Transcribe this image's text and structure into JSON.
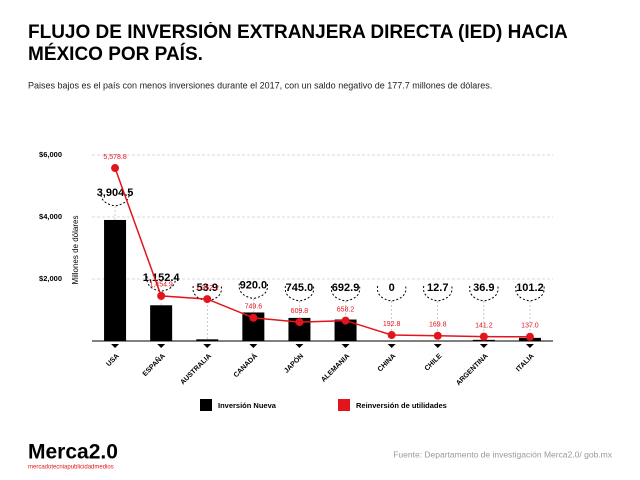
{
  "chart_data": {
    "type": "bar_line",
    "title": "FLUJO DE INVERSIÓN EXTRANJERA DIRECTA (IED) HACIA MÉXICO POR PAÍS.",
    "subtitle": "Paises bajos es el país con menos inversiones durante el 2017, con un saldo negativo de 177.7 millones de dólares.",
    "y_label": "Millones de dólares",
    "categories": [
      "USA",
      "ESPAÑA",
      "AUSTRALIA",
      "CANADÁ",
      "JAPÓN",
      "ALEMANIA",
      "CHINA",
      "CHILE",
      "ARGENTINA",
      "ITALIA"
    ],
    "series": [
      {
        "name": "Inversión Nueva",
        "color": "#000000",
        "kind": "bar",
        "values": [
          3904.5,
          1152.4,
          53.9,
          920.0,
          745.0,
          692.9,
          0,
          12.7,
          36.9,
          101.2
        ],
        "value_labels": [
          "3,904.5",
          "1,152.4",
          "53.9",
          "920.0",
          "745.0",
          "692.9",
          "0",
          "12.7",
          "36.9",
          "101.2"
        ]
      },
      {
        "name": "Reinversión de utilidades",
        "color": "#e3141b",
        "kind": "line",
        "values": [
          5578.8,
          1454.9,
          1352.2,
          749.6,
          609.8,
          658.2,
          192.8,
          169.8,
          141.2,
          137.0
        ],
        "value_labels": [
          "5,578.8",
          "1,454.9",
          "1,352.2",
          "749.6",
          "609.8",
          "658.2",
          "192.8",
          "169.8",
          "141.2",
          "137.0"
        ]
      }
    ],
    "ylim": [
      0,
      6000
    ],
    "yticks": [
      {
        "value": 2000,
        "label": "$2,000"
      },
      {
        "value": 4000,
        "label": "$4,000"
      },
      {
        "value": 6000,
        "label": "$6,000"
      }
    ],
    "grid": true,
    "source": "Fuente: Departamento de investigación Merca2.0/ gob.mx"
  },
  "logo": {
    "name": "Merca2.0",
    "tagline": "mercadotecniapublicidadmedios"
  }
}
